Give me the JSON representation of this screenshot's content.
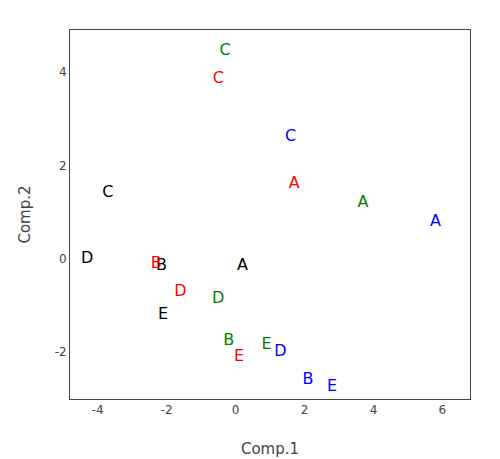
{
  "chart_data": {
    "type": "scatter",
    "marker": "text",
    "x": [
      0.2,
      1.7,
      3.7,
      5.8,
      -2.15,
      -2.3,
      -0.2,
      2.1,
      -3.7,
      -0.5,
      -0.3,
      1.6,
      -4.3,
      -1.6,
      -0.5,
      1.3,
      -2.1,
      0.1,
      0.9,
      2.8
    ],
    "values": [
      -0.15,
      1.6,
      1.2,
      0.8,
      -0.15,
      -0.1,
      -1.75,
      -2.6,
      1.4,
      3.85,
      4.45,
      2.6,
      0.0,
      -0.7,
      -0.85,
      -2.0,
      -1.2,
      -2.1,
      -1.85,
      -2.75
    ],
    "labels": [
      "A",
      "A",
      "A",
      "A",
      "B",
      "B",
      "B",
      "B",
      "C",
      "C",
      "C",
      "C",
      "D",
      "D",
      "D",
      "D",
      "E",
      "E",
      "E",
      "E"
    ],
    "colors": [
      "black",
      "red",
      "green",
      "blue",
      "black",
      "red",
      "green",
      "blue",
      "black",
      "red",
      "green",
      "blue",
      "black",
      "red",
      "green",
      "blue",
      "black",
      "red",
      "green",
      "blue"
    ],
    "xlabel": "Comp.1",
    "ylabel": "Comp.2",
    "xlim": [
      -4.8,
      6.8
    ],
    "ylim": [
      -3.0,
      4.9
    ],
    "xticks": [
      -4,
      -2,
      0,
      2,
      4,
      6
    ],
    "yticks": [
      -2,
      0,
      2,
      4
    ],
    "grid": false
  }
}
